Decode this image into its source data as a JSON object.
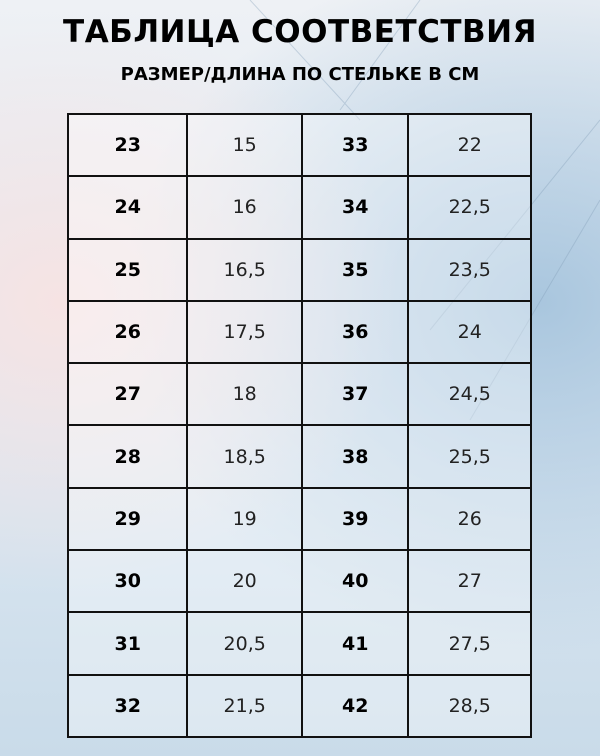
{
  "title": "ТАБЛИЦА СООТВЕТСТВИЯ",
  "subtitle": "РАЗМЕР/ДЛИНА ПО СТЕЛЬКЕ В СМ",
  "rows": [
    {
      "size_a": "23",
      "len_a": "15",
      "size_b": "33",
      "len_b": "22"
    },
    {
      "size_a": "24",
      "len_a": "16",
      "size_b": "34",
      "len_b": "22,5"
    },
    {
      "size_a": "25",
      "len_a": "16,5",
      "size_b": "35",
      "len_b": "23,5"
    },
    {
      "size_a": "26",
      "len_a": "17,5",
      "size_b": "36",
      "len_b": "24"
    },
    {
      "size_a": "27",
      "len_a": "18",
      "size_b": "37",
      "len_b": "24,5"
    },
    {
      "size_a": "28",
      "len_a": "18,5",
      "size_b": "38",
      "len_b": "25,5"
    },
    {
      "size_a": "29",
      "len_a": "19",
      "size_b": "39",
      "len_b": "26"
    },
    {
      "size_a": "30",
      "len_a": "20",
      "size_b": "40",
      "len_b": "27"
    },
    {
      "size_a": "31",
      "len_a": "20,5",
      "size_b": "41",
      "len_b": "27,5"
    },
    {
      "size_a": "32",
      "len_a": "21,5",
      "size_b": "42",
      "len_b": "28,5"
    }
  ]
}
